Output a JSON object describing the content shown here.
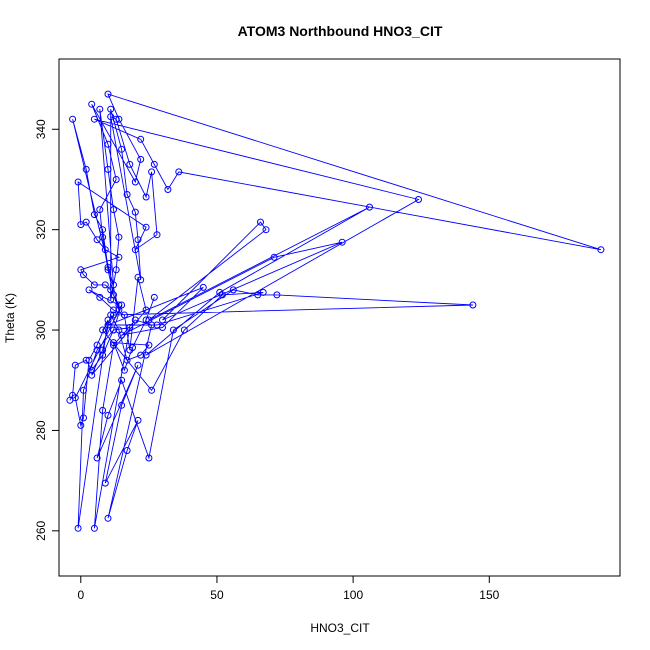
{
  "chart_data": {
    "type": "scatter",
    "title": "ATOM3 Northbound HNO3_CIT",
    "xlabel": "HNO3_CIT",
    "ylabel": "Theta (K)",
    "xlim": [
      -8,
      198
    ],
    "ylim": [
      251,
      354
    ],
    "xticks": [
      0,
      50,
      100,
      150
    ],
    "yticks": [
      260,
      280,
      300,
      320,
      340
    ],
    "grid": false,
    "legend": "none",
    "mode": "lines+markers",
    "color": "#0000ff",
    "points": [
      [
        -4,
        286
      ],
      [
        -3,
        287
      ],
      [
        -2,
        293
      ],
      [
        2,
        294
      ],
      [
        4,
        292
      ],
      [
        8,
        295
      ],
      [
        12,
        300
      ],
      [
        15,
        305
      ],
      [
        -2,
        286.5
      ],
      [
        0,
        281
      ],
      [
        1,
        282.5
      ],
      [
        3,
        294
      ],
      [
        6,
        297
      ],
      [
        10,
        302
      ],
      [
        -1,
        260.5
      ],
      [
        1,
        288
      ],
      [
        6,
        296
      ],
      [
        12,
        300
      ],
      [
        18,
        300.5
      ],
      [
        5,
        260.5
      ],
      [
        8,
        284
      ],
      [
        12,
        297
      ],
      [
        20,
        302
      ],
      [
        26,
        301
      ],
      [
        10,
        262.5
      ],
      [
        17,
        276
      ],
      [
        21,
        282
      ],
      [
        9,
        269.5
      ],
      [
        15,
        285
      ],
      [
        21,
        293
      ],
      [
        6,
        274.5
      ],
      [
        10,
        283
      ],
      [
        15,
        290
      ],
      [
        25,
        274.5
      ],
      [
        34,
        300
      ],
      [
        56,
        308
      ],
      [
        65,
        307
      ],
      [
        72,
        307
      ],
      [
        144,
        305
      ],
      [
        12,
        303
      ],
      [
        8,
        300
      ],
      [
        26,
        288
      ],
      [
        38,
        300
      ],
      [
        52,
        307
      ],
      [
        67,
        307.5
      ],
      [
        28,
        301
      ],
      [
        10,
        301
      ],
      [
        45,
        308.5
      ],
      [
        30,
        300.5
      ],
      [
        15,
        299
      ],
      [
        71,
        314.5
      ],
      [
        96,
        317.5
      ],
      [
        30,
        302
      ],
      [
        66,
        321.5
      ],
      [
        68,
        320
      ],
      [
        25,
        302
      ],
      [
        106,
        324.5
      ],
      [
        51,
        307.5
      ],
      [
        24,
        295
      ],
      [
        124,
        326
      ],
      [
        5,
        342
      ],
      [
        22,
        338
      ],
      [
        27,
        333
      ],
      [
        32,
        328
      ],
      [
        36,
        331.5
      ],
      [
        191,
        316
      ],
      [
        10,
        347
      ],
      [
        14,
        342
      ],
      [
        22,
        334
      ],
      [
        20,
        329.5
      ],
      [
        4,
        345
      ],
      [
        10,
        337
      ],
      [
        13,
        330
      ],
      [
        7,
        324
      ],
      [
        8,
        318.5
      ],
      [
        10,
        312
      ],
      [
        12,
        307
      ],
      [
        14,
        304
      ],
      [
        -3,
        342
      ],
      [
        2,
        332
      ],
      [
        5,
        323
      ],
      [
        8,
        320
      ],
      [
        10,
        312.5
      ],
      [
        12,
        309
      ],
      [
        7,
        344
      ],
      [
        10,
        332
      ],
      [
        12,
        324
      ],
      [
        14,
        318.5
      ],
      [
        13,
        312
      ],
      [
        11,
        306
      ],
      [
        11,
        344
      ],
      [
        15,
        336
      ],
      [
        17,
        327
      ],
      [
        20,
        323.5
      ],
      [
        21,
        318
      ],
      [
        22,
        310
      ],
      [
        11,
        342.5
      ],
      [
        13,
        342
      ],
      [
        18,
        333
      ],
      [
        24,
        326.5
      ],
      [
        26,
        331.5
      ],
      [
        28,
        319
      ],
      [
        20,
        316
      ],
      [
        24,
        320.5
      ],
      [
        -1,
        329.5
      ],
      [
        0,
        321
      ],
      [
        2,
        321.5
      ],
      [
        6,
        318
      ],
      [
        9,
        316
      ],
      [
        14,
        314.5
      ],
      [
        0,
        312
      ],
      [
        1,
        311
      ],
      [
        5,
        309
      ],
      [
        9,
        309
      ],
      [
        11,
        308
      ],
      [
        14,
        305
      ],
      [
        3,
        308
      ],
      [
        7,
        306.5
      ],
      [
        12,
        304
      ],
      [
        16,
        303
      ],
      [
        18,
        296
      ],
      [
        21,
        310.5
      ],
      [
        24,
        304
      ],
      [
        4,
        291
      ],
      [
        8,
        296
      ],
      [
        11,
        303
      ],
      [
        14,
        300
      ],
      [
        17,
        294
      ],
      [
        22,
        295
      ],
      [
        25,
        297
      ],
      [
        12,
        297.5
      ],
      [
        16,
        292
      ],
      [
        19,
        296.5
      ],
      [
        24,
        302
      ],
      [
        27,
        306.5
      ]
    ]
  }
}
